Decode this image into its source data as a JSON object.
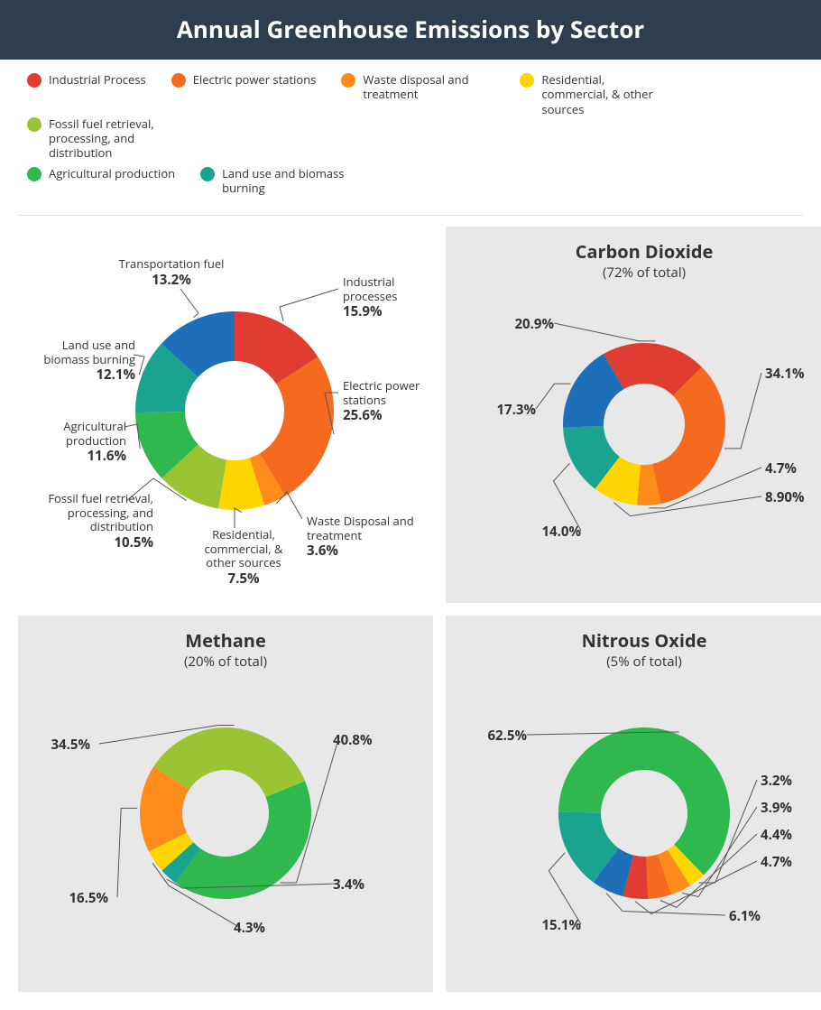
{
  "title": "Annual Greenhouse Emissions by Sector",
  "legend": [
    {
      "label": "Industrial Process",
      "color": "#e03c31"
    },
    {
      "label": "Electric power stations",
      "color": "#f56a1f"
    },
    {
      "label": "Waste disposal and treatment",
      "color": "#ff8c1a"
    },
    {
      "label": "Residential, commercial, & other sources",
      "color": "#ffd500"
    },
    {
      "label": "Fossil fuel retrieval, processing, and distribution",
      "color": "#9ac434"
    },
    {
      "label": "Agricultural production",
      "color": "#2eb84d"
    },
    {
      "label": "Land use and biomass burning",
      "color": "#1aa490"
    }
  ],
  "charts": {
    "overall": {
      "type": "donut",
      "outer_r": 110,
      "inner_r": 55,
      "start_deg": -90,
      "slices": [
        {
          "value": 15.9,
          "color": "#e03c31",
          "label": "Industrial processes",
          "pct": "15.9%"
        },
        {
          "value": 25.6,
          "color": "#f56a1f",
          "label": "Electric power stations",
          "pct": "25.6%"
        },
        {
          "value": 3.6,
          "color": "#ff8c1a",
          "label": "Waste Disposal and treatment",
          "pct": "3.6%"
        },
        {
          "value": 7.5,
          "color": "#ffd500",
          "label": "Residential, commercial, & other sources",
          "pct": "7.5%"
        },
        {
          "value": 10.5,
          "color": "#9ac434",
          "label": "Fossil fuel retrieval, processing, and distribution",
          "pct": "10.5%"
        },
        {
          "value": 11.6,
          "color": "#2eb84d",
          "label": "Agricultural production",
          "pct": "11.6%"
        },
        {
          "value": 12.1,
          "color": "#1aa490",
          "label": "Land use and biomass burning",
          "pct": "12.1%"
        },
        {
          "value": 13.2,
          "color": "#1e6fb8",
          "label": "Transportation fuel",
          "pct": "13.2%"
        }
      ]
    },
    "co2": {
      "title": "Carbon Dioxide",
      "sub": "(72% of total)",
      "type": "donut",
      "outer_r": 90,
      "inner_r": 45,
      "start_deg": -120,
      "slices": [
        {
          "value": 20.9,
          "color": "#e03c31",
          "pct": "20.9%"
        },
        {
          "value": 34.1,
          "color": "#f56a1f",
          "pct": "34.1%"
        },
        {
          "value": 4.7,
          "color": "#ff8c1a",
          "pct": "4.7%"
        },
        {
          "value": 8.9,
          "color": "#ffd500",
          "pct": "8.90%"
        },
        {
          "value": 14.0,
          "color": "#1aa490",
          "pct": "14.0%"
        },
        {
          "value": 17.3,
          "color": "#1e6fb8",
          "pct": "17.3%"
        }
      ]
    },
    "methane": {
      "title": "Methane",
      "sub": "(20% of total)",
      "type": "donut",
      "outer_r": 95,
      "inner_r": 48,
      "start_deg": -22,
      "slices": [
        {
          "value": 40.8,
          "color": "#2eb84d",
          "pct": "40.8%"
        },
        {
          "value": 3.4,
          "color": "#1aa490",
          "pct": "3.4%"
        },
        {
          "value": 4.3,
          "color": "#ffd500",
          "pct": "4.3%"
        },
        {
          "value": 16.5,
          "color": "#ff8c1a",
          "pct": "16.5%"
        },
        {
          "value": 34.5,
          "color": "#9ac434",
          "pct": "34.5%"
        }
      ]
    },
    "n2o": {
      "title": "Nitrous Oxide",
      "sub": "(5% of total)",
      "type": "donut",
      "outer_r": 95,
      "inner_r": 48,
      "start_deg": 46,
      "slices": [
        {
          "value": 3.2,
          "color": "#ffd500",
          "pct": "3.2%"
        },
        {
          "value": 3.9,
          "color": "#ff8c1a",
          "pct": "3.9%"
        },
        {
          "value": 4.4,
          "color": "#f56a1f",
          "pct": "4.4%"
        },
        {
          "value": 4.7,
          "color": "#e03c31",
          "pct": "4.7%"
        },
        {
          "value": 6.1,
          "color": "#1e6fb8",
          "pct": "6.1%"
        },
        {
          "value": 15.1,
          "color": "#1aa490",
          "pct": "15.1%"
        },
        {
          "value": 62.5,
          "color": "#2eb84d",
          "pct": "62.5%"
        }
      ]
    }
  },
  "style": {
    "header_bg": "#2c3e50",
    "panel_gray": "#e8e8e8",
    "leader_color": "#555555",
    "title_fontsize": 26,
    "panel_title_fontsize": 20,
    "label_fontsize": 13,
    "pct_fontsize": 15
  }
}
